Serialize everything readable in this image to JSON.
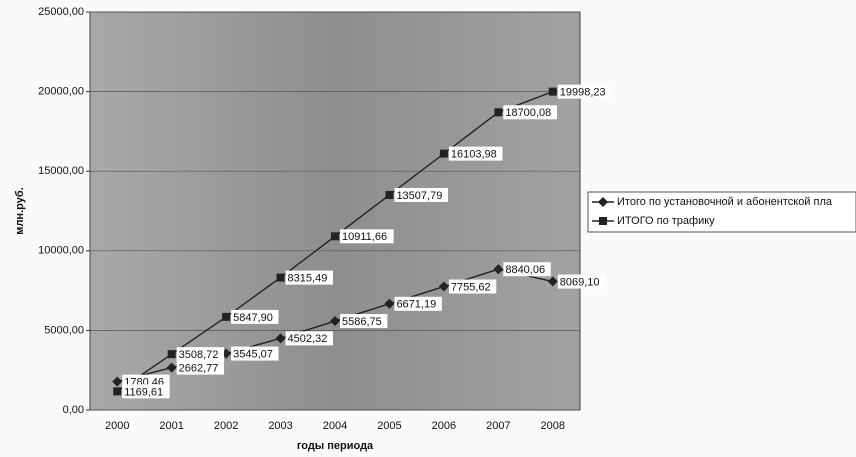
{
  "chart_data": {
    "type": "line",
    "x_label": "годы периода",
    "y_label": "млн.руб.",
    "categories": [
      "2000",
      "2001",
      "2002",
      "2003",
      "2004",
      "2005",
      "2006",
      "2007",
      "2008"
    ],
    "series": [
      {
        "name": "Итого по установочной и абонентской пла",
        "color": "#222222",
        "marker": "diamond",
        "values": [
          1780.46,
          2662.77,
          3545.07,
          4502.32,
          5586.75,
          6671.19,
          7755.62,
          8840.06,
          8069.1
        ],
        "value_labels": [
          "1780,46",
          "2662,77",
          "3545,07",
          "4502,32",
          "5586,75",
          "6671,19",
          "7755,62",
          "8840,06",
          "8069,10"
        ]
      },
      {
        "name": "ИТОГО по трафику",
        "color": "#222222",
        "marker": "square",
        "values": [
          1169.61,
          3508.72,
          5847.9,
          8315.49,
          10911.66,
          13507.79,
          16103.98,
          18700.08,
          19998.23
        ],
        "value_labels": [
          "1169,61",
          "3508,72",
          "5847,90",
          "8315,49",
          "10911,66",
          "13507,79",
          "16103,98",
          "18700,08",
          "19998,23"
        ]
      }
    ],
    "ylim": [
      0,
      25000
    ],
    "yticks": [
      {
        "value": 0,
        "label": "0,00"
      },
      {
        "value": 5000,
        "label": "5000,00"
      },
      {
        "value": 10000,
        "label": "10000,00"
      },
      {
        "value": 15000,
        "label": "15000,00"
      },
      {
        "value": 20000,
        "label": "20000,00"
      },
      {
        "value": 25000,
        "label": "25000,00"
      }
    ],
    "grid": true,
    "legend": "right"
  }
}
